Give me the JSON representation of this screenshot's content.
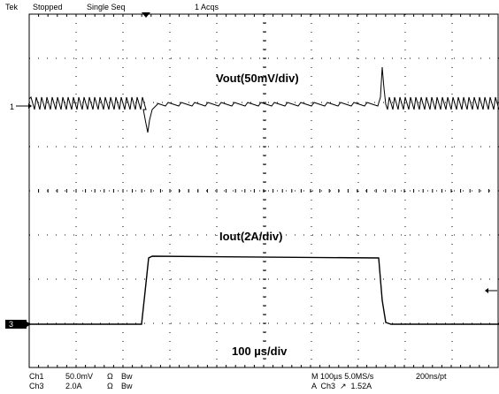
{
  "header": {
    "brand": "Tek",
    "state": "Stopped",
    "mode": "Single Seq",
    "acqs": "1 Acqs"
  },
  "markers": {
    "ch1": "1",
    "ch3": "3"
  },
  "labels": {
    "vout": "Vout(50mV/div)",
    "iout": "Iout(2A/div)",
    "time": "100 µs/div"
  },
  "footer": {
    "ch1_name": "Ch1",
    "ch1_scale": "50.0mV",
    "ch1_ohm": "Ω",
    "ch1_bw": "Bw",
    "ch3_name": "Ch3",
    "ch3_scale": "2.0A",
    "ch3_ohm": "Ω",
    "ch3_bw": "Bw",
    "timebase": "M 100µs 5.0MS/s",
    "trigger": "A  Ch3  ↗  1.52A",
    "resolution": "200ns/pt"
  },
  "colors": {
    "trace": "#000000",
    "grid": "#000000",
    "background": "#ffffff"
  }
}
